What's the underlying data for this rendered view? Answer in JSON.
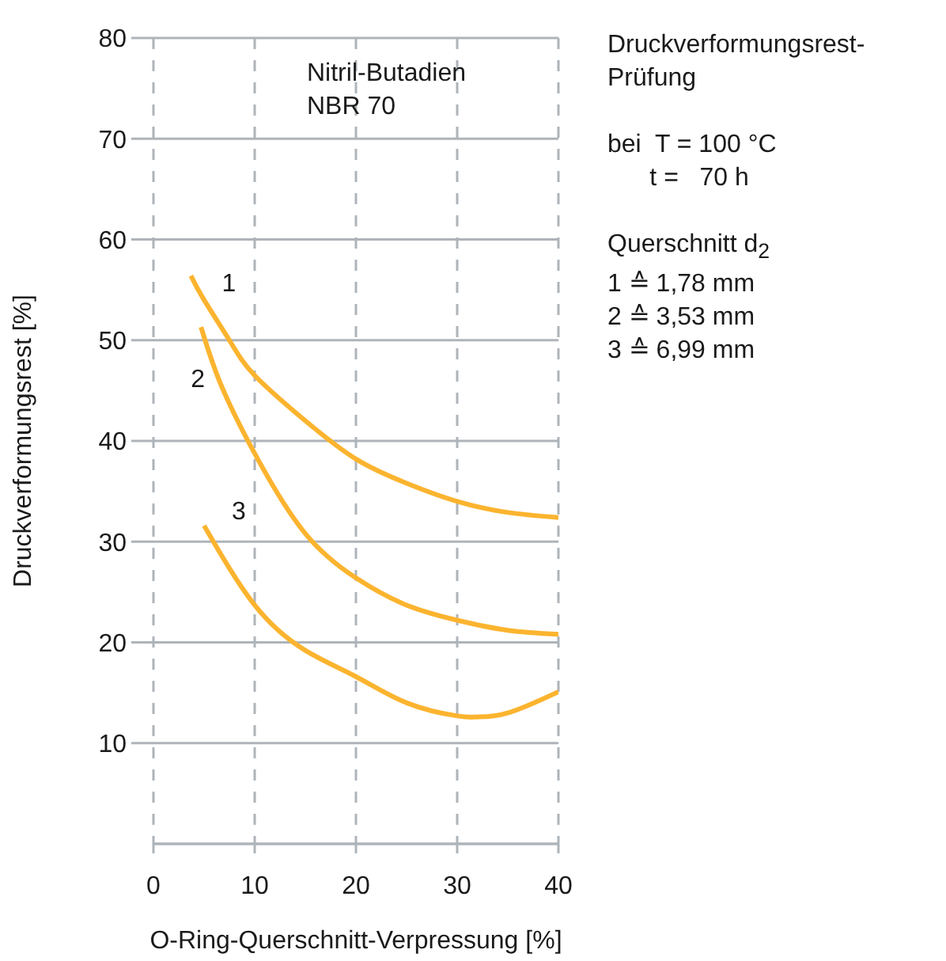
{
  "chart_data": {
    "type": "line",
    "title": "Druckverformungsrest-Prüfung",
    "subtitle": "Nitril-Butadien\nNBR 70",
    "xlabel": "O-Ring-Querschnitt-Verpressung [%]",
    "ylabel": "Druckverformungsrest  [%]",
    "annotations": [
      "bei  T = 100 °C\n      t =   70 h",
      "Querschnitt d$_{2}$\n1 ≙ 1,78 mm\n2 ≙ 3,53 mm\n3 ≙ 6,99 mm"
    ],
    "series": [
      {
        "name": "1",
        "color": "#fbb42f",
        "x": [
          3.7,
          5,
          7.5,
          10,
          15,
          20,
          25,
          30,
          35,
          40
        ],
        "values": [
          56.4,
          54,
          50,
          46.5,
          42,
          38.2,
          35.8,
          34,
          32.9,
          32.4
        ]
      },
      {
        "name": "2",
        "color": "#fbb42f",
        "x": [
          4.7,
          6.7,
          10.3,
          15,
          20,
          25,
          30,
          35,
          40
        ],
        "values": [
          51.3,
          45.5,
          38.2,
          30.8,
          26.4,
          23.7,
          22.2,
          21.2,
          20.8
        ]
      },
      {
        "name": "3",
        "color": "#fbb42f",
        "x": [
          5,
          10,
          15,
          20,
          25,
          30,
          32,
          35,
          40
        ],
        "values": [
          31.6,
          23.7,
          19.2,
          16.6,
          14,
          12.7,
          12.6,
          13,
          15.1
        ]
      }
    ],
    "xlim": [
      0,
      40
    ],
    "xticks": [
      0,
      10,
      20,
      30,
      40
    ],
    "ylim": [
      0,
      80
    ],
    "yticks": [
      10,
      20,
      30,
      40,
      50,
      60,
      70,
      80
    ],
    "grid": true,
    "legend": false,
    "marker": "none",
    "line_style": "solid"
  }
}
